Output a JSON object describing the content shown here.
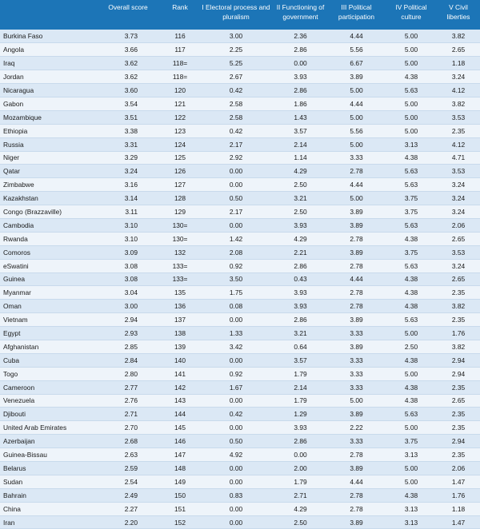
{
  "table": {
    "headers": [
      "",
      "Overall score",
      "Rank",
      "I Electoral process and pluralism",
      "II Functioning of government",
      "III Political participation",
      "IV Political culture",
      "V Civil liberties"
    ],
    "rows": [
      [
        "Burkina Faso",
        "3.73",
        "116",
        "3.00",
        "2.36",
        "4.44",
        "5.00",
        "3.82"
      ],
      [
        "Angola",
        "3.66",
        "117",
        "2.25",
        "2.86",
        "5.56",
        "5.00",
        "2.65"
      ],
      [
        "Iraq",
        "3.62",
        "118=",
        "5.25",
        "0.00",
        "6.67",
        "5.00",
        "1.18"
      ],
      [
        "Jordan",
        "3.62",
        "118=",
        "2.67",
        "3.93",
        "3.89",
        "4.38",
        "3.24"
      ],
      [
        "Nicaragua",
        "3.60",
        "120",
        "0.42",
        "2.86",
        "5.00",
        "5.63",
        "4.12"
      ],
      [
        "Gabon",
        "3.54",
        "121",
        "2.58",
        "1.86",
        "4.44",
        "5.00",
        "3.82"
      ],
      [
        "Mozambique",
        "3.51",
        "122",
        "2.58",
        "1.43",
        "5.00",
        "5.00",
        "3.53"
      ],
      [
        "Ethiopia",
        "3.38",
        "123",
        "0.42",
        "3.57",
        "5.56",
        "5.00",
        "2.35"
      ],
      [
        "Russia",
        "3.31",
        "124",
        "2.17",
        "2.14",
        "5.00",
        "3.13",
        "4.12"
      ],
      [
        "Niger",
        "3.29",
        "125",
        "2.92",
        "1.14",
        "3.33",
        "4.38",
        "4.71"
      ],
      [
        "Qatar",
        "3.24",
        "126",
        "0.00",
        "4.29",
        "2.78",
        "5.63",
        "3.53"
      ],
      [
        "Zimbabwe",
        "3.16",
        "127",
        "0.00",
        "2.50",
        "4.44",
        "5.63",
        "3.24"
      ],
      [
        "Kazakhstan",
        "3.14",
        "128",
        "0.50",
        "3.21",
        "5.00",
        "3.75",
        "3.24"
      ],
      [
        "Congo (Brazzaville)",
        "3.11",
        "129",
        "2.17",
        "2.50",
        "3.89",
        "3.75",
        "3.24"
      ],
      [
        "Cambodia",
        "3.10",
        "130=",
        "0.00",
        "3.93",
        "3.89",
        "5.63",
        "2.06"
      ],
      [
        "Rwanda",
        "3.10",
        "130=",
        "1.42",
        "4.29",
        "2.78",
        "4.38",
        "2.65"
      ],
      [
        "Comoros",
        "3.09",
        "132",
        "2.08",
        "2.21",
        "3.89",
        "3.75",
        "3.53"
      ],
      [
        "eSwatini",
        "3.08",
        "133=",
        "0.92",
        "2.86",
        "2.78",
        "5.63",
        "3.24"
      ],
      [
        "Guinea",
        "3.08",
        "133=",
        "3.50",
        "0.43",
        "4.44",
        "4.38",
        "2.65"
      ],
      [
        "Myanmar",
        "3.04",
        "135",
        "1.75",
        "3.93",
        "2.78",
        "4.38",
        "2.35"
      ],
      [
        "Oman",
        "3.00",
        "136",
        "0.08",
        "3.93",
        "2.78",
        "4.38",
        "3.82"
      ],
      [
        "Vietnam",
        "2.94",
        "137",
        "0.00",
        "2.86",
        "3.89",
        "5.63",
        "2.35"
      ],
      [
        "Egypt",
        "2.93",
        "138",
        "1.33",
        "3.21",
        "3.33",
        "5.00",
        "1.76"
      ],
      [
        "Afghanistan",
        "2.85",
        "139",
        "3.42",
        "0.64",
        "3.89",
        "2.50",
        "3.82"
      ],
      [
        "Cuba",
        "2.84",
        "140",
        "0.00",
        "3.57",
        "3.33",
        "4.38",
        "2.94"
      ],
      [
        "Togo",
        "2.80",
        "141",
        "0.92",
        "1.79",
        "3.33",
        "5.00",
        "2.94"
      ],
      [
        "Cameroon",
        "2.77",
        "142",
        "1.67",
        "2.14",
        "3.33",
        "4.38",
        "2.35"
      ],
      [
        "Venezuela",
        "2.76",
        "143",
        "0.00",
        "1.79",
        "5.00",
        "4.38",
        "2.65"
      ],
      [
        "Djibouti",
        "2.71",
        "144",
        "0.42",
        "1.29",
        "3.89",
        "5.63",
        "2.35"
      ],
      [
        "United Arab Emirates",
        "2.70",
        "145",
        "0.00",
        "3.93",
        "2.22",
        "5.00",
        "2.35"
      ],
      [
        "Azerbaijan",
        "2.68",
        "146",
        "0.50",
        "2.86",
        "3.33",
        "3.75",
        "2.94"
      ],
      [
        "Guinea-Bissau",
        "2.63",
        "147",
        "4.92",
        "0.00",
        "2.78",
        "3.13",
        "2.35"
      ],
      [
        "Belarus",
        "2.59",
        "148",
        "0.00",
        "2.00",
        "3.89",
        "5.00",
        "2.06"
      ],
      [
        "Sudan",
        "2.54",
        "149",
        "0.00",
        "1.79",
        "4.44",
        "5.00",
        "1.47"
      ],
      [
        "Bahrain",
        "2.49",
        "150",
        "0.83",
        "2.71",
        "2.78",
        "4.38",
        "1.76"
      ],
      [
        "China",
        "2.27",
        "151",
        "0.00",
        "4.29",
        "2.78",
        "3.13",
        "1.18"
      ],
      [
        "Iran",
        "2.20",
        "152",
        "0.00",
        "2.50",
        "3.89",
        "3.13",
        "1.47"
      ]
    ]
  }
}
